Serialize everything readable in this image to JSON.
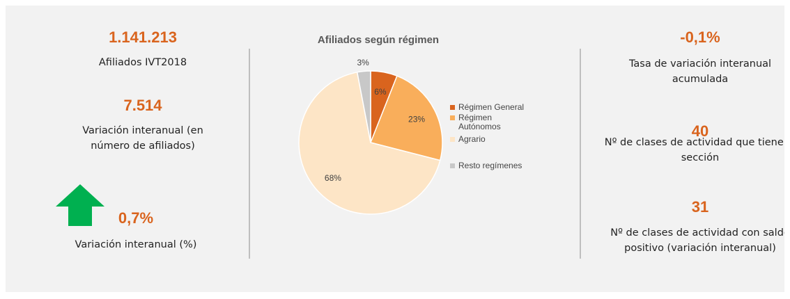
{
  "left": [
    {
      "value": "1.141.213",
      "label": "Afiliados IVT2018"
    },
    {
      "value": "7.514",
      "label": "Variación interanual (en número de afiliados)"
    },
    {
      "value": "0,7%",
      "label": "Variación interanual (%)"
    }
  ],
  "right": [
    {
      "value": "-0,1%",
      "label": "Tasa de variación interanual acumulada"
    },
    {
      "value": "40",
      "label": "Nº de clases de actividad que tiene la sección"
    },
    {
      "value": "31",
      "label": "Nº de clases de actividad con saldo positivo (variación interanual)"
    }
  ],
  "chart_data": {
    "type": "pie",
    "title": "Afiliados según régimen",
    "categories": [
      "Régimen General",
      "Régimen Autónomos",
      "Agrario",
      "Resto regímenes"
    ],
    "values": [
      6,
      23,
      68,
      3
    ],
    "value_labels": [
      "6%",
      "23%",
      "68%",
      "3%"
    ],
    "colors": [
      "#d9641e",
      "#f9ae5b",
      "#fde5c6",
      "#c8c8c8"
    ]
  }
}
